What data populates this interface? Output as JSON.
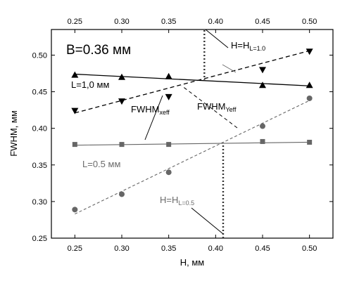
{
  "chart_data": {
    "type": "scatter",
    "xlabel": "H, мм",
    "ylabel": "FWHM, мм",
    "xlim": [
      0.225,
      0.525
    ],
    "ylim": [
      0.25,
      0.535
    ],
    "xticks": [
      "0.25",
      "0.30",
      "0.35",
      "0.40",
      "0.45",
      "0.50"
    ],
    "yticks": [
      "0.25",
      "0.30",
      "0.35",
      "0.40",
      "0.45",
      "0.50"
    ],
    "top_ticks": [
      "0.25",
      "0.30",
      "0.35",
      "0.40",
      "0.45",
      "0.50"
    ],
    "series": [
      {
        "marker": "triangle-up",
        "color": "#000000",
        "x": [
          0.25,
          0.3,
          0.35,
          0.45,
          0.5
        ],
        "y": [
          0.473,
          0.47,
          0.471,
          0.459,
          0.459
        ],
        "fit": {
          "x": [
            0.25,
            0.5
          ],
          "y": [
            0.474,
            0.458
          ],
          "style": "solid"
        }
      },
      {
        "marker": "triangle-down",
        "color": "#000000",
        "x": [
          0.25,
          0.3,
          0.35,
          0.45,
          0.5
        ],
        "y": [
          0.424,
          0.437,
          0.443,
          0.48,
          0.505
        ],
        "fit": {
          "x": [
            0.25,
            0.5
          ],
          "y": [
            0.421,
            0.506
          ],
          "style": "dashed"
        }
      },
      {
        "marker": "square",
        "color": "#666666",
        "x": [
          0.25,
          0.3,
          0.35,
          0.45,
          0.5
        ],
        "y": [
          0.378,
          0.378,
          0.378,
          0.382,
          0.381
        ],
        "fit": {
          "x": [
            0.25,
            0.5
          ],
          "y": [
            0.377,
            0.381
          ],
          "style": "solid"
        }
      },
      {
        "marker": "circle",
        "color": "#666666",
        "x": [
          0.25,
          0.3,
          0.35,
          0.45,
          0.5
        ],
        "y": [
          0.289,
          0.31,
          0.34,
          0.403,
          0.441
        ],
        "fit": {
          "x": [
            0.25,
            0.5
          ],
          "y": [
            0.283,
            0.438
          ],
          "style": "dashed"
        }
      }
    ],
    "annotations": {
      "title": "B=0.36 мм",
      "l10": "L=1,0 мм",
      "l05": "L=0.5 мм",
      "fwhm_x_main": "FWHM",
      "fwhm_x_sub": "xeff",
      "fwhm_y_main": "FWHM",
      "fwhm_y_sub": "Yeff",
      "h10_main": "H=H",
      "h10_sub": "L=1.0",
      "h05_main": "H=H",
      "h05_sub": "L=0.5"
    },
    "guides": [
      {
        "x": 0.388,
        "y": [
          0.465,
          0.535
        ],
        "style": "dotted"
      },
      {
        "x": 0.408,
        "y": [
          0.25,
          0.38
        ],
        "style": "dotted"
      }
    ],
    "grid": false
  }
}
